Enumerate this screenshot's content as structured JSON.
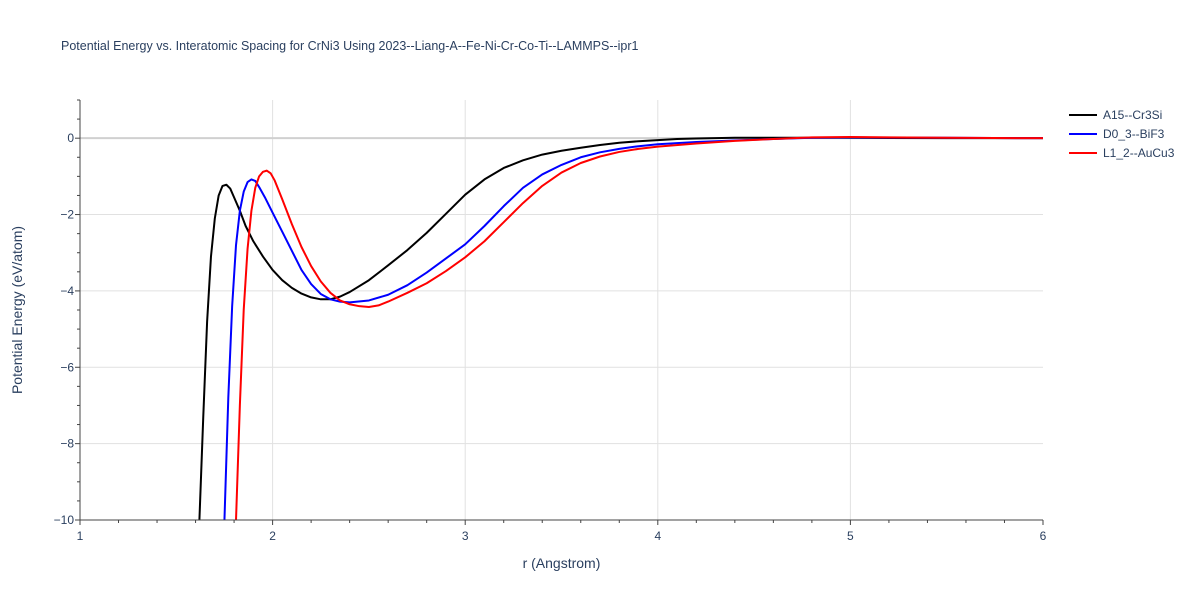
{
  "chart_data": {
    "type": "line",
    "title": "Potential Energy vs. Interatomic Spacing for CrNi3 Using 2023--Liang-A--Fe-Ni-Cr-Co-Ti--LAMMPS--ipr1",
    "xlabel": "r (Angstrom)",
    "ylabel": "Potential Energy (eV/atom)",
    "xlim": [
      1,
      6
    ],
    "ylim": [
      -10,
      1
    ],
    "xticks": [
      1,
      2,
      3,
      4,
      5,
      6
    ],
    "yticks": [
      -10,
      -8,
      -6,
      -4,
      -2,
      0
    ],
    "x_tick_labels": [
      "1",
      "2",
      "3",
      "4",
      "5",
      "6"
    ],
    "y_tick_labels": [
      "−10",
      "−8",
      "−6",
      "−4",
      "−2",
      "0"
    ],
    "grid": true,
    "legend_position": "top-right",
    "series": [
      {
        "name": "A15--Cr3Si",
        "color": "#000000",
        "x": [
          1.62,
          1.64,
          1.66,
          1.68,
          1.7,
          1.72,
          1.74,
          1.76,
          1.78,
          1.8,
          1.83,
          1.86,
          1.9,
          1.95,
          2.0,
          2.05,
          2.1,
          2.15,
          2.2,
          2.25,
          2.3,
          2.35,
          2.4,
          2.5,
          2.6,
          2.7,
          2.8,
          2.9,
          3.0,
          3.1,
          3.2,
          3.3,
          3.4,
          3.5,
          3.6,
          3.7,
          3.8,
          3.9,
          4.0,
          4.1,
          4.2,
          4.3,
          4.4,
          4.5,
          4.6,
          4.8,
          5.0,
          5.5,
          6.0
        ],
        "y": [
          -10.0,
          -7.3,
          -4.8,
          -3.1,
          -2.1,
          -1.5,
          -1.25,
          -1.22,
          -1.32,
          -1.55,
          -1.9,
          -2.3,
          -2.7,
          -3.1,
          -3.45,
          -3.72,
          -3.92,
          -4.07,
          -4.17,
          -4.22,
          -4.22,
          -4.15,
          -4.03,
          -3.72,
          -3.33,
          -2.93,
          -2.48,
          -1.98,
          -1.48,
          -1.08,
          -0.78,
          -0.58,
          -0.43,
          -0.33,
          -0.25,
          -0.18,
          -0.12,
          -0.08,
          -0.05,
          -0.02,
          -0.01,
          0.0,
          0.01,
          0.01,
          0.01,
          0.01,
          0.01,
          0.0,
          0.0
        ]
      },
      {
        "name": "D0_3--BiF3",
        "color": "#0000ff",
        "x": [
          1.75,
          1.77,
          1.79,
          1.81,
          1.83,
          1.85,
          1.87,
          1.89,
          1.91,
          1.93,
          1.96,
          2.0,
          2.05,
          2.1,
          2.15,
          2.2,
          2.25,
          2.3,
          2.35,
          2.4,
          2.5,
          2.6,
          2.7,
          2.8,
          2.9,
          3.0,
          3.1,
          3.2,
          3.3,
          3.4,
          3.5,
          3.6,
          3.7,
          3.8,
          3.9,
          4.0,
          4.2,
          4.4,
          4.6,
          4.8,
          5.0,
          5.5,
          6.0
        ],
        "y": [
          -10.0,
          -6.8,
          -4.4,
          -2.8,
          -1.9,
          -1.4,
          -1.15,
          -1.08,
          -1.12,
          -1.28,
          -1.55,
          -1.95,
          -2.45,
          -2.95,
          -3.45,
          -3.82,
          -4.08,
          -4.22,
          -4.28,
          -4.3,
          -4.25,
          -4.1,
          -3.85,
          -3.52,
          -3.15,
          -2.78,
          -2.3,
          -1.78,
          -1.3,
          -0.95,
          -0.7,
          -0.5,
          -0.37,
          -0.28,
          -0.21,
          -0.16,
          -0.1,
          -0.06,
          -0.02,
          0.01,
          0.02,
          0.01,
          0.0
        ]
      },
      {
        "name": "L1_2--AuCu3",
        "color": "#ff0000",
        "x": [
          1.81,
          1.83,
          1.85,
          1.87,
          1.89,
          1.91,
          1.93,
          1.95,
          1.97,
          1.99,
          2.01,
          2.05,
          2.1,
          2.15,
          2.2,
          2.25,
          2.3,
          2.35,
          2.4,
          2.45,
          2.5,
          2.55,
          2.6,
          2.7,
          2.8,
          2.9,
          3.0,
          3.1,
          3.2,
          3.3,
          3.4,
          3.5,
          3.6,
          3.7,
          3.8,
          3.9,
          4.0,
          4.2,
          4.4,
          4.6,
          4.8,
          5.0,
          5.5,
          6.0
        ],
        "y": [
          -10.0,
          -7.0,
          -4.5,
          -2.9,
          -1.9,
          -1.3,
          -1.0,
          -0.88,
          -0.85,
          -0.92,
          -1.1,
          -1.6,
          -2.25,
          -2.85,
          -3.35,
          -3.75,
          -4.05,
          -4.25,
          -4.35,
          -4.4,
          -4.42,
          -4.38,
          -4.28,
          -4.05,
          -3.8,
          -3.48,
          -3.12,
          -2.7,
          -2.2,
          -1.7,
          -1.25,
          -0.9,
          -0.65,
          -0.48,
          -0.36,
          -0.28,
          -0.22,
          -0.14,
          -0.07,
          -0.02,
          0.02,
          0.03,
          0.01,
          0.0
        ]
      }
    ]
  }
}
